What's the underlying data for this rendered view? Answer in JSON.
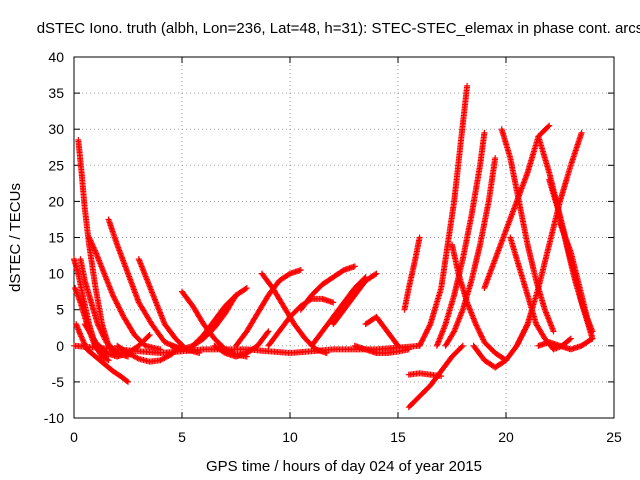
{
  "chart_data": {
    "type": "scatter",
    "title": "dSTEC Iono. truth (albh, Lon=236, Lat=48, h=31): STEC-STEC_elemax in phase cont. arcs",
    "xlabel": "GPS time / hours of day 024 of year 2015",
    "ylabel": "dSTEC  / TECUs",
    "xlim": [
      0,
      25
    ],
    "ylim": [
      -10,
      40
    ],
    "xticks": [
      0,
      5,
      10,
      15,
      20,
      25
    ],
    "yticks": [
      -10,
      -5,
      0,
      5,
      10,
      15,
      20,
      25,
      30,
      35,
      40
    ],
    "grid": true,
    "marker": "+",
    "color": "#ff0000",
    "series": [
      {
        "x": [
          0.1,
          0.3,
          0.6,
          1.0,
          1.4,
          1.8,
          2.2,
          2.5
        ],
        "y": [
          3.0,
          1.5,
          -0.5,
          -1.5,
          -2.5,
          -3.5,
          -4.3,
          -5.0
        ]
      },
      {
        "x": [
          0.2,
          0.35,
          0.5,
          0.7,
          1.0,
          1.3,
          1.6,
          1.9
        ],
        "y": [
          28.5,
          24,
          19,
          14,
          8,
          3,
          0,
          -1
        ]
      },
      {
        "x": [
          0.0,
          0.2,
          0.4,
          0.7,
          1.0,
          1.3,
          1.6
        ],
        "y": [
          12,
          10,
          7,
          3,
          0,
          -1.5,
          -2
        ]
      },
      {
        "x": [
          0.05,
          0.3,
          0.6,
          0.9,
          1.2,
          1.5
        ],
        "y": [
          8,
          6,
          3,
          0.5,
          -1,
          -1.5
        ]
      },
      {
        "x": [
          0.3,
          0.5,
          0.8,
          1.1,
          1.5,
          2.0,
          2.5
        ],
        "y": [
          12,
          9,
          6,
          3,
          0.5,
          -1,
          -1.5
        ]
      },
      {
        "x": [
          0.7,
          1.0,
          1.4,
          1.8,
          2.3,
          2.8,
          3.3,
          4.0
        ],
        "y": [
          15,
          13,
          10,
          7,
          4,
          1.5,
          0,
          -0.5
        ]
      },
      {
        "x": [
          1.6,
          2.0,
          2.5,
          3.0,
          3.6,
          4.2,
          5.0
        ],
        "y": [
          17.5,
          14,
          10,
          6,
          3,
          0.5,
          -0.5
        ]
      },
      {
        "x": [
          3.0,
          3.4,
          3.8,
          4.2,
          4.7,
          5.2,
          5.8
        ],
        "y": [
          12,
          9,
          6,
          3,
          1,
          -0.5,
          -1
        ]
      },
      {
        "x": [
          0.5,
          1.0,
          1.5,
          2.0,
          2.5,
          3.0,
          3.5
        ],
        "y": [
          3,
          0.5,
          -1,
          -1.5,
          -1,
          0,
          1.5
        ]
      },
      {
        "x": [
          2.0,
          2.5,
          3.0,
          3.5,
          4.0,
          4.5,
          5.0
        ],
        "y": [
          0,
          -1,
          -1.8,
          -2.2,
          -2,
          -1.2,
          0
        ]
      },
      {
        "x": [
          5.0,
          5.5,
          6.0,
          6.5,
          7.0,
          7.5,
          8.0
        ],
        "y": [
          7.5,
          5.5,
          3,
          1,
          -0.5,
          -1.2,
          -1.5
        ]
      },
      {
        "x": [
          5.5,
          6.0,
          6.5,
          7.0,
          7.5,
          8.0
        ],
        "y": [
          0,
          1.5,
          3.5,
          5.5,
          7,
          8
        ]
      },
      {
        "x": [
          4.5,
          5.0,
          5.5,
          6.0,
          6.5,
          7.0,
          7.5
        ],
        "y": [
          0,
          -0.5,
          0,
          1,
          2.5,
          4.5,
          7
        ]
      },
      {
        "x": [
          6.5,
          7.0,
          7.5,
          8.0,
          8.5,
          9.0
        ],
        "y": [
          0,
          -1,
          -1.5,
          -1,
          0,
          2
        ]
      },
      {
        "x": [
          7.5,
          8.0,
          8.5,
          9.0,
          9.5,
          10.0,
          10.5
        ],
        "y": [
          0,
          2,
          4.5,
          7,
          9,
          10,
          10.5
        ]
      },
      {
        "x": [
          8.7,
          9.2,
          9.7,
          10.2,
          10.7,
          11.2,
          11.7
        ],
        "y": [
          10,
          8,
          5.5,
          3,
          1,
          -0.5,
          -1
        ]
      },
      {
        "x": [
          9.0,
          9.5,
          10.0,
          10.5,
          11.0,
          11.5,
          12.0
        ],
        "y": [
          0,
          2,
          4,
          5.5,
          6.5,
          6.5,
          6
        ]
      },
      {
        "x": [
          10.5,
          11.0,
          11.5,
          12.0,
          12.5,
          13.0
        ],
        "y": [
          5,
          7,
          8.5,
          9.5,
          10.5,
          11
        ]
      },
      {
        "x": [
          11.0,
          11.5,
          12.0,
          12.5,
          13.0,
          13.5
        ],
        "y": [
          0,
          2,
          4,
          6,
          8,
          9.5
        ]
      },
      {
        "x": [
          12.0,
          12.5,
          13.0,
          13.5,
          14.0
        ],
        "y": [
          3,
          5,
          7,
          9,
          10
        ]
      },
      {
        "x": [
          13.5,
          14.0,
          14.5,
          15.0
        ],
        "y": [
          3,
          4,
          2,
          0
        ]
      },
      {
        "x": [
          13.0,
          13.5,
          14.0,
          14.5,
          15.0,
          15.5
        ],
        "y": [
          0,
          -0.5,
          -1,
          -1,
          -0.8,
          -0.5
        ]
      },
      {
        "x": [
          15.3,
          15.5,
          15.8,
          16.0
        ],
        "y": [
          5,
          8,
          12,
          15
        ]
      },
      {
        "x": [
          15.5,
          16.0,
          16.5,
          17.0,
          17.5,
          18.0
        ],
        "y": [
          -8.5,
          -7,
          -5.5,
          -3.5,
          -1.5,
          0
        ]
      },
      {
        "x": [
          15.5,
          16.0,
          16.5,
          17.0
        ],
        "y": [
          -4,
          -3.8,
          -4,
          -4.2
        ]
      },
      {
        "x": [
          16.0,
          16.5,
          17.0,
          17.3,
          17.6,
          17.9,
          18.2
        ],
        "y": [
          0,
          3,
          8,
          14,
          20,
          28,
          36
        ]
      },
      {
        "x": [
          16.8,
          17.2,
          17.6,
          18.0,
          18.4,
          18.8,
          19.0
        ],
        "y": [
          0,
          3,
          7,
          12,
          18,
          25,
          29.5
        ]
      },
      {
        "x": [
          17.2,
          17.6,
          18.0,
          18.4,
          18.8,
          19.2,
          19.5
        ],
        "y": [
          0,
          2,
          5,
          9,
          14,
          20,
          26
        ]
      },
      {
        "x": [
          17.5,
          17.8,
          18.2,
          18.6,
          19.0,
          19.5,
          20.0
        ],
        "y": [
          14,
          10,
          6,
          3,
          0.5,
          -1,
          -2
        ]
      },
      {
        "x": [
          18.5,
          19.0,
          19.5,
          20.0,
          20.5,
          21.0
        ],
        "y": [
          0,
          -2,
          -3,
          -2,
          0,
          3
        ]
      },
      {
        "x": [
          19.0,
          19.5,
          20.0,
          20.5,
          21.0,
          21.5,
          22.0
        ],
        "y": [
          8,
          12,
          16,
          20,
          24,
          29,
          30.5
        ]
      },
      {
        "x": [
          19.8,
          20.2,
          20.6,
          21.0,
          21.4,
          21.8,
          22.2
        ],
        "y": [
          30,
          26,
          20,
          14,
          9,
          5,
          2
        ]
      },
      {
        "x": [
          20.2,
          20.6,
          21.0,
          21.4,
          21.8,
          22.2,
          22.6,
          23.0
        ],
        "y": [
          15,
          11,
          7,
          3,
          1,
          -0.5,
          0,
          1
        ]
      },
      {
        "x": [
          20.5,
          21.0,
          21.5,
          22.0,
          22.5,
          23.0,
          23.5
        ],
        "y": [
          0,
          3,
          8,
          14,
          20,
          25,
          29.5
        ]
      },
      {
        "x": [
          21.5,
          22.0,
          22.5,
          23.0,
          23.5,
          24.0
        ],
        "y": [
          29,
          24,
          18,
          12,
          6,
          1
        ]
      },
      {
        "x": [
          22.0,
          22.4,
          22.8,
          23.2,
          23.6,
          24.0
        ],
        "y": [
          23,
          19,
          14,
          9,
          5,
          2
        ]
      },
      {
        "x": [
          22.5,
          23.0,
          23.5,
          24.0
        ],
        "y": [
          17,
          13,
          7,
          1
        ]
      },
      {
        "x": [
          21.5,
          22.0,
          22.5,
          23.0,
          23.5,
          24.0
        ],
        "y": [
          0,
          0.5,
          0,
          -0.5,
          0,
          1
        ]
      },
      {
        "x": [
          0.0,
          2.0,
          4.0,
          6.0,
          8.0,
          10.0,
          12.0,
          14.0,
          16.0
        ],
        "y": [
          0,
          -0.5,
          -1,
          -0.5,
          -0.5,
          -1,
          -0.5,
          -0.5,
          0
        ]
      }
    ]
  }
}
